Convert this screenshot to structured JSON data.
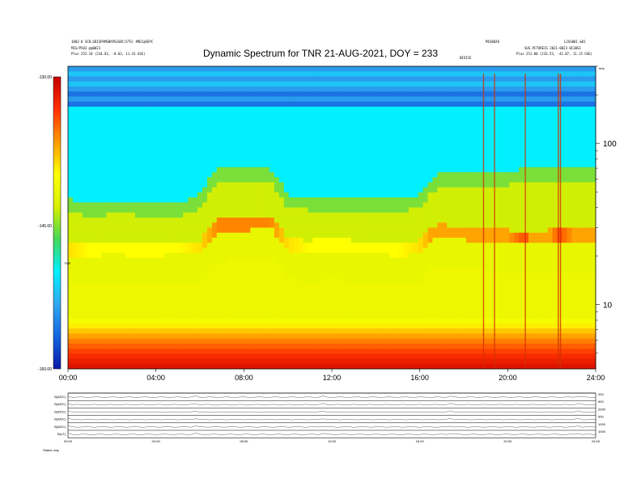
{
  "header": {
    "left_line1": "1002-0 SCB;GDISPAMSBAPGSSBC(STS) #REC@SEPC",
    "left_line2": "MIG/P503 @@0023",
    "left_line3": "Plus    252.18 (234.82, -8.03, 11.41 GSE)",
    "right_line1": "MIG0020",
    "right_line2": "L2GS001 &01",
    "right_line3": "SUS_PCTUREIS 2021-0823 0C30SI",
    "right_line4": "Plus    251.80 (233.53, -42.07, 11.15 GSE)",
    "marker_label": "DEVICE"
  },
  "chart_data": {
    "type": "heatmap",
    "title": "Dynamic Spectrum for TNR 21-AUG-2021, DOY = 233",
    "x_axis": {
      "unit": "time",
      "range": [
        "00:00",
        "24:00"
      ],
      "tick_labels": [
        "00:00",
        "04:00",
        "08:00",
        "12:00",
        "16:00",
        "20:00",
        "24:00"
      ]
    },
    "y_axis": {
      "scale": "log",
      "range": [
        4,
        300
      ],
      "tick_labels": [
        "10",
        "100"
      ],
      "corner_label": "kHz"
    },
    "colorbar": {
      "label": "TNR",
      "range": [
        -160,
        -130
      ],
      "tick_labels": [
        "-130.00",
        "-145.00",
        "-160.00"
      ],
      "colors": [
        "#0a1aa8",
        "#1565e0",
        "#2fa8f0",
        "#00f0ff",
        "#48d858",
        "#d8f000",
        "#ffff00",
        "#ff9a00",
        "#ff3000",
        "#c80000"
      ]
    },
    "x_hours": [
      0,
      1,
      2,
      3,
      4,
      5,
      6,
      6.8,
      8,
      9.2,
      10,
      11,
      12,
      13,
      14,
      15,
      16,
      16.5,
      17,
      18,
      19,
      20,
      20.8,
      21,
      22,
      22.3,
      23,
      24
    ],
    "features": {
      "green_band_top_khz": [
        45,
        43,
        44,
        44,
        42,
        42,
        48,
        70,
        72,
        70,
        48,
        47,
        46,
        45,
        46,
        46,
        48,
        60,
        66,
        66,
        66,
        67,
        70,
        70,
        70,
        70,
        70,
        70
      ],
      "orange_emission_khz": [
        22,
        22,
        23,
        22,
        22,
        23,
        23,
        31,
        32,
        33,
        24,
        23,
        24,
        23,
        23,
        22,
        23,
        28,
        29,
        28,
        27,
        27,
        26,
        26,
        27,
        27,
        27,
        27
      ],
      "orange_emission_level_db": [
        -139,
        -140,
        -140,
        -140,
        -140,
        -140,
        -139,
        -136,
        -136,
        -136,
        -139,
        -140,
        -140,
        -140,
        -140,
        -140,
        -139,
        -137,
        -137,
        -137,
        -137,
        -137,
        -134,
        -137,
        -137,
        -134,
        -137,
        -137
      ],
      "vertical_bursts_hours": [
        18.9,
        19.4,
        20.8,
        22.3,
        22.4
      ]
    },
    "lower_panels": {
      "rows": 6,
      "left_labels": [
        "B(ADC)",
        "B(ADC)",
        "B(ADC)",
        "B(ADC)",
        "B(ADC)",
        "B(nT)"
      ],
      "right_labels": [
        "200",
        "500",
        "2000",
        "500",
        "1000",
        "1000"
      ],
      "x_tick_labels": [
        "00:00",
        "04:00",
        "08:00",
        "12:00",
        "16:00",
        "20:00",
        "24:00"
      ],
      "footer": "Status   only"
    }
  }
}
